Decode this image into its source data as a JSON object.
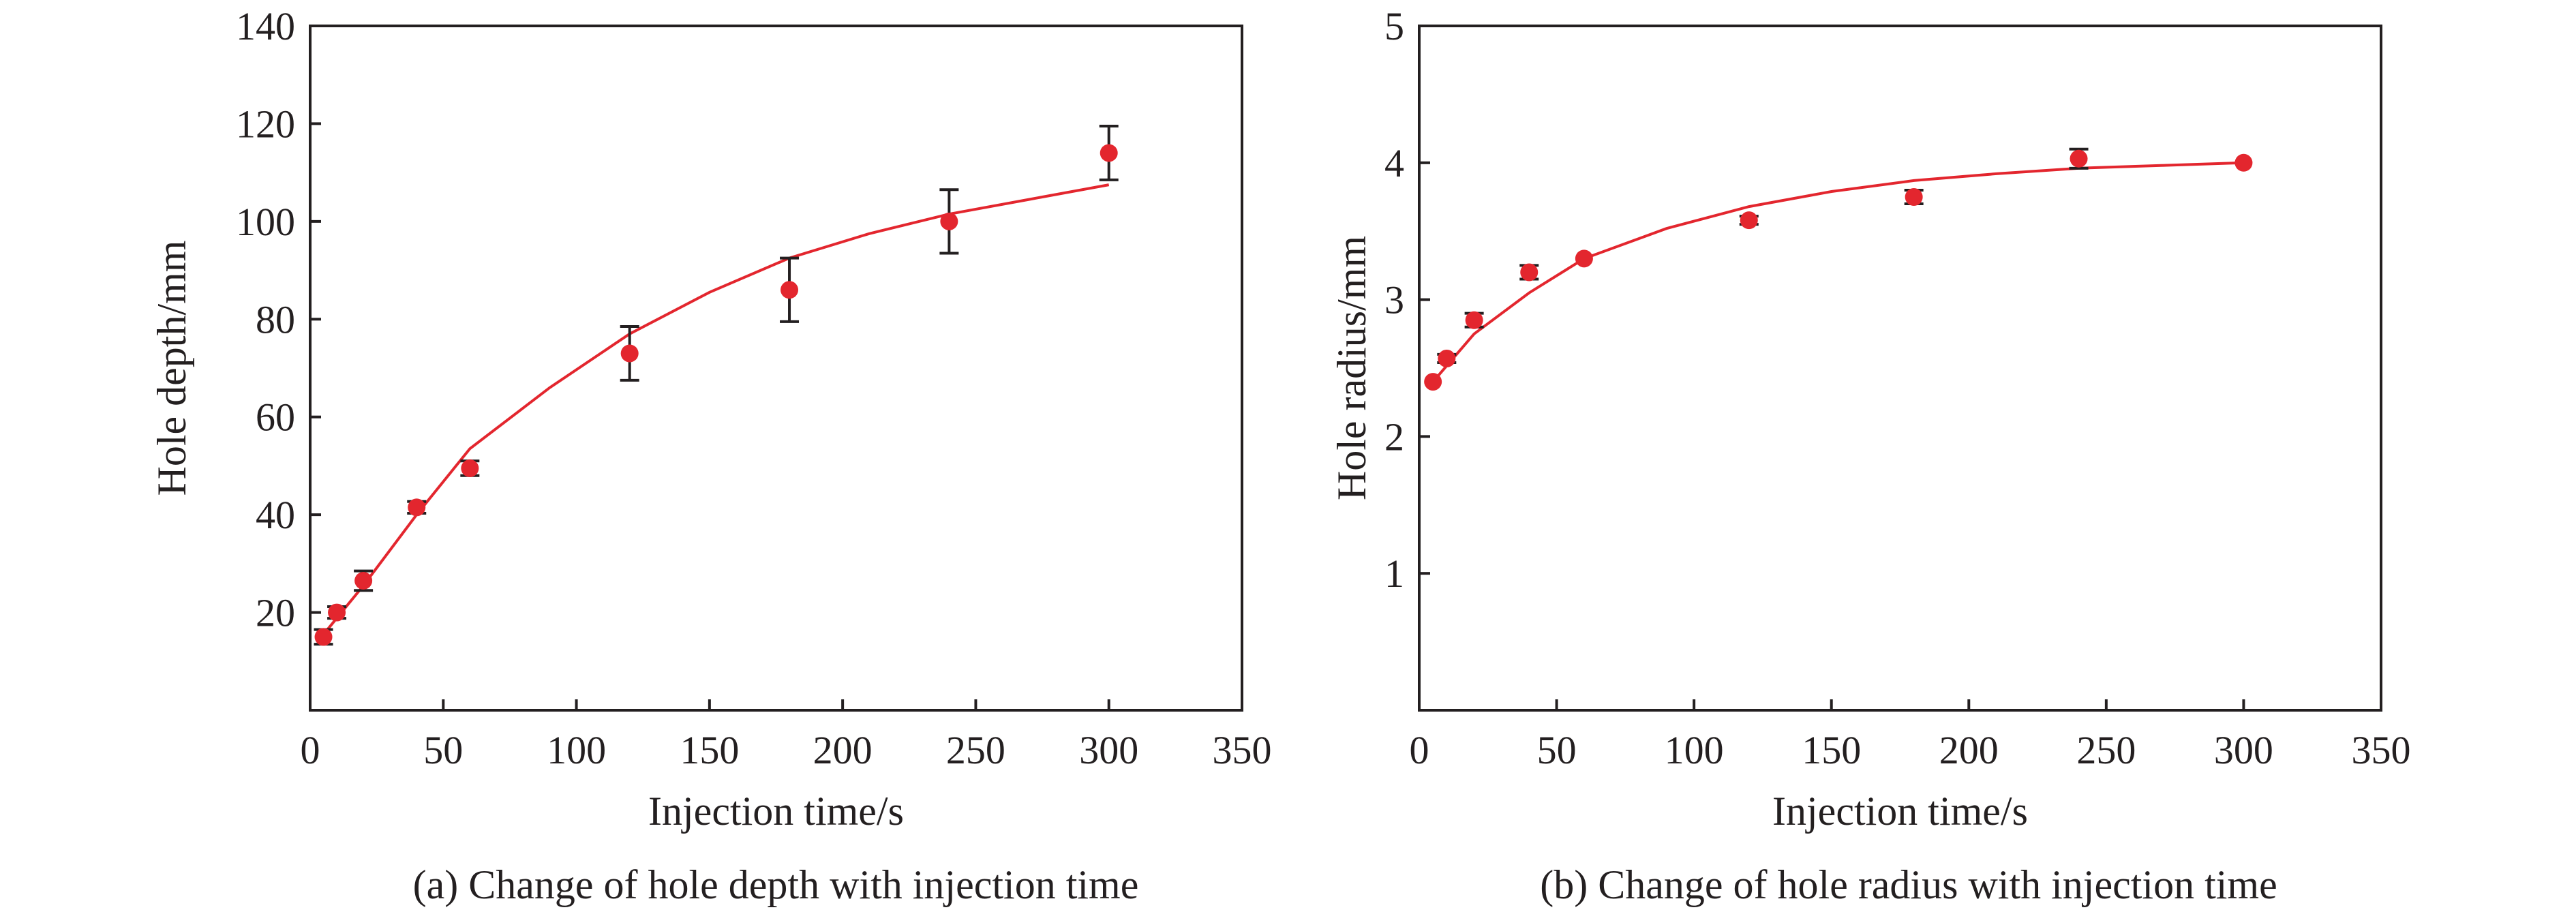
{
  "colors": {
    "marker": "#e3262e",
    "curve": "#e3262e",
    "axis": "#231f20",
    "errorbar": "#231f20"
  },
  "chart_data": [
    {
      "type": "scatter",
      "panel_caption": "(a) Change of hole depth with injection time",
      "xlabel": "Injection time/s",
      "ylabel": "Hole depth/mm",
      "xlim": [
        0,
        350
      ],
      "ylim": [
        0,
        140
      ],
      "xticks": [
        0,
        50,
        100,
        150,
        200,
        250,
        300,
        350
      ],
      "yticks": [
        20,
        40,
        60,
        80,
        100,
        120,
        140
      ],
      "grid": false,
      "series": [
        {
          "kind": "points_with_error",
          "x": [
            5,
            10,
            20,
            40,
            60,
            120,
            180,
            240,
            300
          ],
          "y": [
            15,
            20,
            26.5,
            41.5,
            49.5,
            73,
            86,
            100,
            114
          ],
          "err": [
            1.5,
            1.2,
            2,
            1.2,
            1.5,
            5.5,
            6.5,
            6.5,
            5.5
          ]
        },
        {
          "kind": "fit_curve",
          "x": [
            5,
            20,
            40,
            60,
            90,
            120,
            150,
            180,
            210,
            240,
            270,
            300
          ],
          "y": [
            15.5,
            25.5,
            40,
            53.5,
            66,
            77,
            85.5,
            92.5,
            97.5,
            101.5,
            104.5,
            107.5
          ]
        }
      ]
    },
    {
      "type": "scatter",
      "panel_caption": "(b) Change of hole radius with injection time",
      "xlabel": "Injection time/s",
      "ylabel": "Hole radius/mm",
      "xlim": [
        0,
        350
      ],
      "ylim": [
        0,
        5
      ],
      "xticks": [
        0,
        50,
        100,
        150,
        200,
        250,
        300,
        350
      ],
      "yticks": [
        1,
        2,
        3,
        4,
        5
      ],
      "grid": false,
      "series": [
        {
          "kind": "points_with_error",
          "x": [
            5,
            10,
            20,
            40,
            60,
            120,
            180,
            240,
            300
          ],
          "y": [
            2.4,
            2.57,
            2.85,
            3.2,
            3.3,
            3.58,
            3.75,
            4.03,
            4
          ],
          "err": [
            0,
            0.03,
            0.05,
            0.05,
            0,
            0.03,
            0.05,
            0.07,
            0
          ]
        },
        {
          "kind": "fit_curve",
          "x": [
            5,
            20,
            40,
            60,
            90,
            120,
            150,
            180,
            210,
            240,
            270,
            300
          ],
          "y": [
            2.4,
            2.75,
            3.05,
            3.3,
            3.52,
            3.68,
            3.79,
            3.87,
            3.92,
            3.96,
            3.98,
            4.0
          ]
        }
      ]
    }
  ]
}
